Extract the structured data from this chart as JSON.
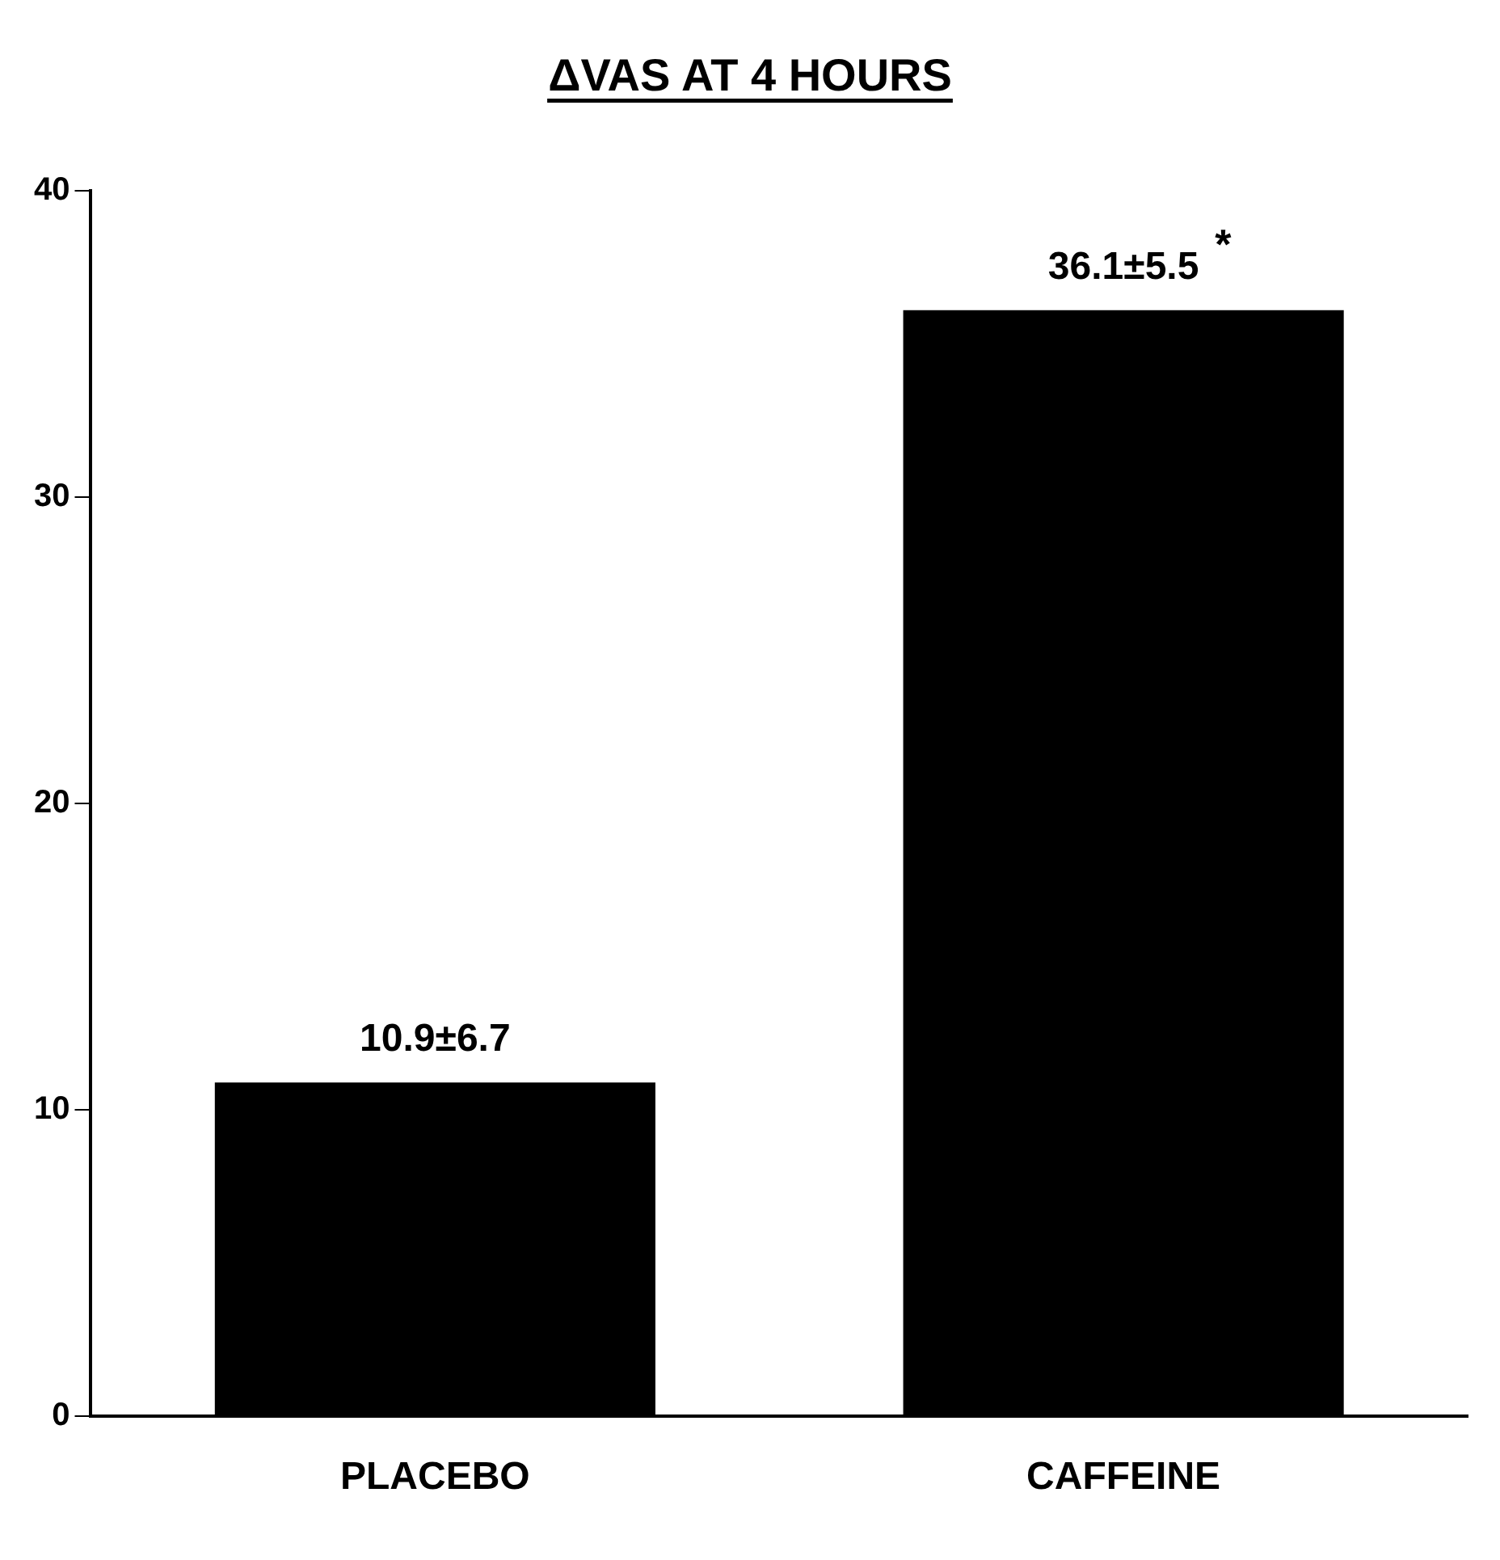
{
  "chart_data": {
    "type": "bar",
    "title": "ΔVAS AT 4 HOURS",
    "categories": [
      "PLACEBO",
      "CAFFEINE"
    ],
    "values": [
      10.9,
      36.1
    ],
    "value_labels": [
      "10.9±6.7",
      "36.1±5.5"
    ],
    "color": "#000000",
    "ylim": [
      0,
      40
    ],
    "yticks": [
      0,
      10,
      20,
      30,
      40
    ],
    "grid": false,
    "legend": false,
    "annotations": [
      {
        "text": "*",
        "x": "CAFFEINE",
        "y": 36.1
      }
    ]
  }
}
